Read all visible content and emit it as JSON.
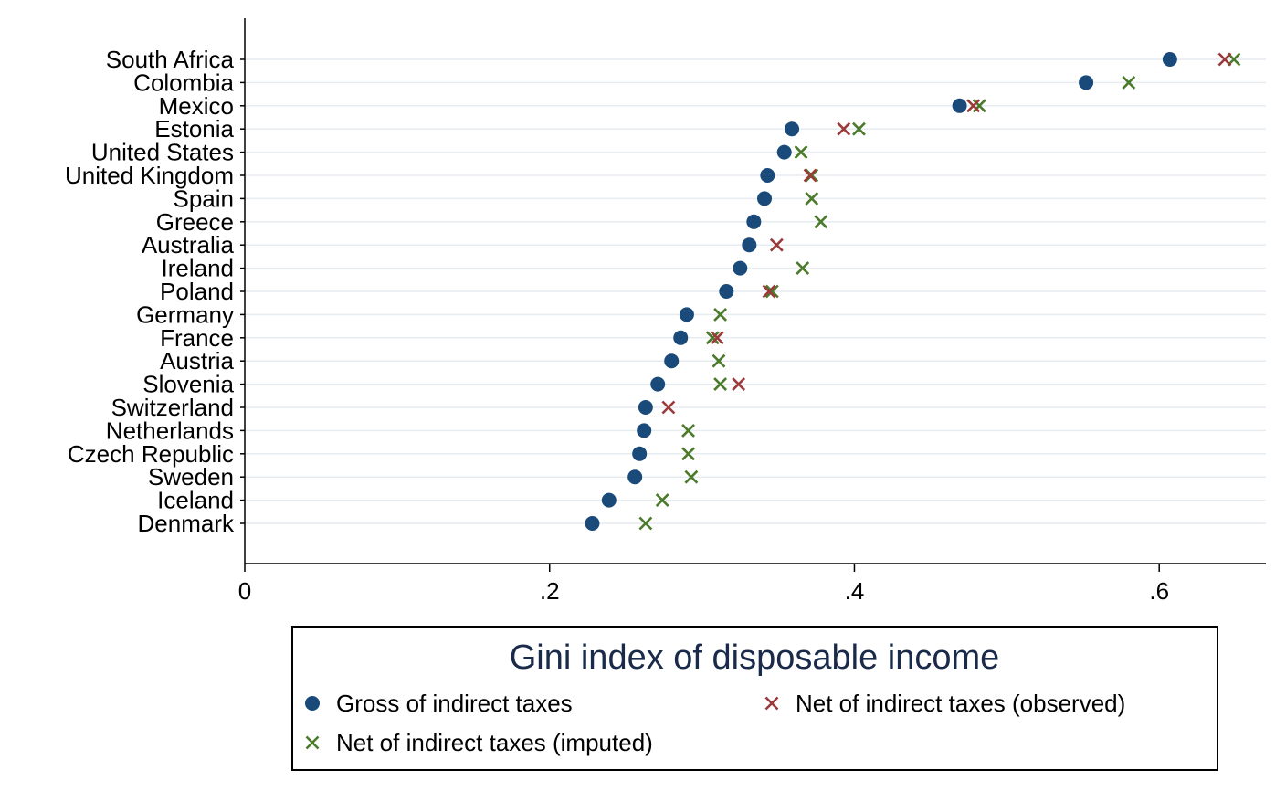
{
  "chart_data": {
    "type": "scatter",
    "orientation": "horizontal-dot",
    "categories": [
      "South Africa",
      "Colombia",
      "Mexico",
      "Estonia",
      "United States",
      "United Kingdom",
      "Spain",
      "Greece",
      "Australia",
      "Ireland",
      "Poland",
      "Germany",
      "France",
      "Austria",
      "Slovenia",
      "Switzerland",
      "Netherlands",
      "Czech Republic",
      "Sweden",
      "Iceland",
      "Denmark"
    ],
    "xlim": [
      0,
      0.67
    ],
    "xticks": [
      0,
      0.2,
      0.4,
      0.6
    ],
    "xtick_labels": [
      "0",
      ".2",
      ".4",
      ".6"
    ],
    "grid": "horizontal",
    "legend_title": "Gini index of disposable income",
    "legend_position": "bottom",
    "series": [
      {
        "name": "Gross of indirect taxes",
        "marker": "circle",
        "color": "#1a4a7a",
        "values": [
          0.607,
          0.552,
          0.469,
          0.359,
          0.354,
          0.343,
          0.341,
          0.334,
          0.331,
          0.325,
          0.316,
          0.29,
          0.286,
          0.28,
          0.271,
          0.263,
          0.262,
          0.259,
          0.256,
          0.239,
          0.228
        ]
      },
      {
        "name": "Net of indirect taxes (observed)",
        "marker": "x",
        "color": "#9a3a3a",
        "values": [
          0.643,
          null,
          0.478,
          0.393,
          null,
          0.371,
          null,
          null,
          0.349,
          null,
          0.344,
          null,
          0.31,
          null,
          0.324,
          0.278,
          null,
          null,
          null,
          null,
          null
        ]
      },
      {
        "name": "Net of indirect taxes (imputed)",
        "marker": "x",
        "color": "#4a7a2a",
        "values": [
          0.649,
          0.58,
          0.482,
          0.403,
          0.365,
          0.372,
          0.372,
          0.378,
          null,
          0.366,
          0.346,
          0.312,
          0.307,
          0.311,
          0.312,
          null,
          0.291,
          0.291,
          0.293,
          0.274,
          0.263
        ]
      }
    ]
  }
}
